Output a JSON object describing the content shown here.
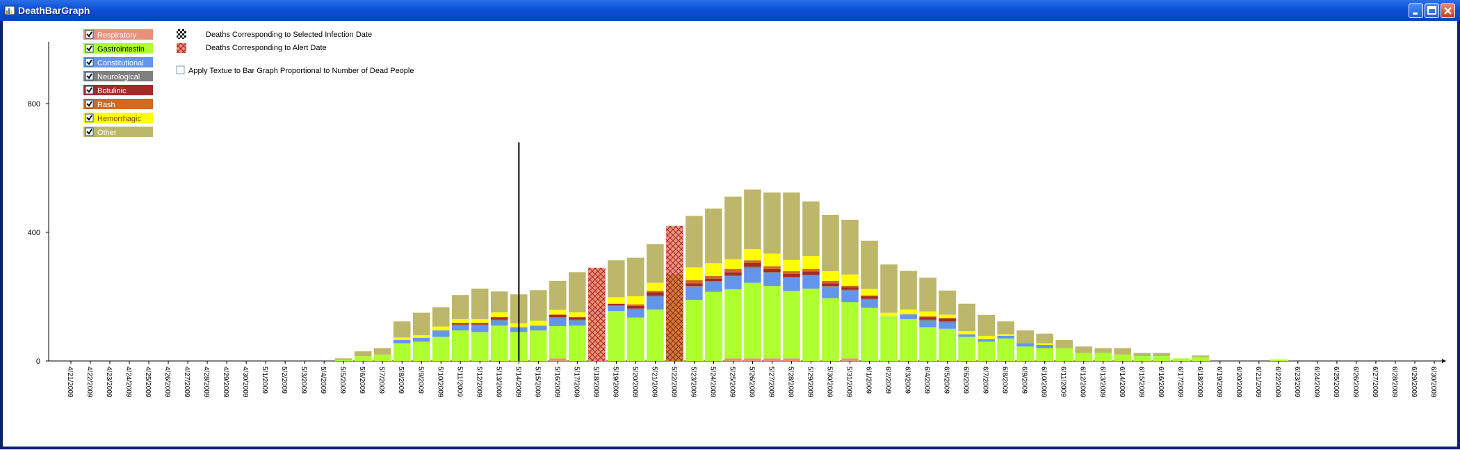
{
  "window": {
    "title": "DeathBarGraph"
  },
  "legend": {
    "items": [
      {
        "label": "Respiratory",
        "color": "#E8907A",
        "text_color": "#FFFFFF",
        "checked": true
      },
      {
        "label": "Gastrointestin",
        "color": "#ADFF2F",
        "text_color": "#000000",
        "checked": true
      },
      {
        "label": "Constitutional",
        "color": "#6495ED",
        "text_color": "#FFFFFF",
        "checked": true
      },
      {
        "label": "Neurological",
        "color": "#808080",
        "text_color": "#FFFFFF",
        "checked": true
      },
      {
        "label": "Botulinic",
        "color": "#A52A2A",
        "text_color": "#FFFFFF",
        "checked": true
      },
      {
        "label": "Rash",
        "color": "#D2691E",
        "text_color": "#FFFFFF",
        "checked": true
      },
      {
        "label": "Hemorrhagic",
        "color": "#FFFF00",
        "text_color": "#8B4513",
        "checked": true
      },
      {
        "label": "Other",
        "color": "#BDB76B",
        "text_color": "#FFFFFF",
        "checked": true
      }
    ],
    "texture_legend": [
      {
        "label": "Deaths Corresponding to Selected Infection Date",
        "pattern": "black-checker"
      },
      {
        "label": "Deaths Corresponding to Alert Date",
        "pattern": "red-checker"
      }
    ],
    "apply_texture": {
      "label": "Apply Textue to Bar Graph Proportional to Number of Dead People",
      "checked": false
    }
  },
  "chart_data": {
    "type": "bar",
    "stacked": true,
    "title": "",
    "xlabel": "",
    "ylabel": "",
    "ylim": [
      0,
      1000
    ],
    "yticks": [
      0,
      400,
      800
    ],
    "grid": false,
    "categories": [
      "4/21/2009",
      "4/22/2009",
      "4/23/2009",
      "4/24/2009",
      "4/25/2009",
      "4/26/2009",
      "4/27/2009",
      "4/28/2009",
      "4/29/2009",
      "4/30/2009",
      "5/1/2009",
      "5/2/2009",
      "5/3/2009",
      "5/4/2009",
      "5/5/2009",
      "5/6/2009",
      "5/7/2009",
      "5/8/2009",
      "5/9/2009",
      "5/10/2009",
      "5/11/2009",
      "5/12/2009",
      "5/13/2009",
      "5/14/2009",
      "5/15/2009",
      "5/16/2009",
      "5/17/2009",
      "5/18/2009",
      "5/19/2009",
      "5/20/2009",
      "5/21/2009",
      "5/22/2009",
      "5/23/2009",
      "5/24/2009",
      "5/25/2009",
      "5/26/2009",
      "5/27/2009",
      "5/28/2009",
      "5/29/2009",
      "5/30/2009",
      "5/31/2009",
      "6/1/2009",
      "6/2/2009",
      "6/3/2009",
      "6/4/2009",
      "6/5/2009",
      "6/6/2009",
      "6/7/2009",
      "6/8/2009",
      "6/9/2009",
      "6/10/2009",
      "6/11/2009",
      "6/12/2009",
      "6/13/2009",
      "6/14/2009",
      "6/15/2009",
      "6/16/2009",
      "6/17/2009",
      "6/18/2009",
      "6/19/2009",
      "6/20/2009",
      "6/21/2009",
      "6/22/2009",
      "6/23/2009",
      "6/24/2009",
      "6/25/2009",
      "6/26/2009",
      "6/27/2009",
      "6/28/2009",
      "6/29/2009",
      "6/30/2009"
    ],
    "series": [
      {
        "name": "Respiratory",
        "color": "#E8907A",
        "values": [
          0,
          0,
          0,
          0,
          0,
          0,
          0,
          0,
          0,
          0,
          0,
          0,
          0,
          0,
          0,
          0,
          0,
          0,
          0,
          0,
          0,
          0,
          0,
          0,
          0,
          8,
          0,
          8,
          0,
          0,
          0,
          0,
          0,
          0,
          8,
          8,
          8,
          8,
          0,
          0,
          8,
          0,
          0,
          0,
          0,
          0,
          0,
          0,
          0,
          0,
          0,
          0,
          0,
          0,
          0,
          0,
          0,
          0,
          0,
          0,
          0,
          0,
          0,
          0,
          0,
          0,
          0,
          0,
          0,
          0,
          0
        ]
      },
      {
        "name": "Gastrointestin",
        "color": "#ADFF2F",
        "values": [
          0,
          0,
          0,
          0,
          0,
          0,
          0,
          0,
          0,
          0,
          0,
          0,
          0,
          0,
          3,
          15,
          20,
          55,
          60,
          75,
          95,
          90,
          110,
          90,
          95,
          100,
          110,
          130,
          155,
          135,
          160,
          185,
          190,
          215,
          215,
          235,
          225,
          210,
          225,
          195,
          175,
          165,
          140,
          130,
          105,
          100,
          75,
          60,
          70,
          45,
          40,
          40,
          25,
          25,
          20,
          15,
          15,
          8,
          12,
          0,
          0,
          0,
          5,
          0,
          0,
          0,
          0,
          0,
          0,
          0,
          0
        ]
      },
      {
        "name": "Constitutional",
        "color": "#6495ED",
        "values": [
          0,
          0,
          0,
          0,
          0,
          0,
          0,
          0,
          0,
          0,
          0,
          0,
          0,
          0,
          0,
          0,
          0,
          10,
          12,
          20,
          15,
          20,
          15,
          15,
          15,
          25,
          15,
          20,
          15,
          25,
          40,
          0,
          40,
          30,
          40,
          45,
          40,
          40,
          40,
          35,
          35,
          25,
          0,
          15,
          20,
          20,
          8,
          8,
          8,
          10,
          10,
          0,
          0,
          0,
          0,
          0,
          0,
          0,
          0,
          0,
          0,
          0,
          0,
          0,
          0,
          0,
          0,
          0,
          0,
          0,
          0
        ]
      },
      {
        "name": "Neurological",
        "color": "#808080",
        "values": [
          0,
          0,
          0,
          0,
          0,
          0,
          0,
          0,
          0,
          0,
          0,
          0,
          0,
          0,
          0,
          0,
          0,
          0,
          0,
          0,
          3,
          3,
          3,
          0,
          0,
          3,
          3,
          3,
          3,
          3,
          3,
          0,
          3,
          3,
          3,
          5,
          3,
          3,
          3,
          3,
          3,
          3,
          0,
          0,
          3,
          3,
          0,
          0,
          0,
          0,
          0,
          0,
          0,
          0,
          0,
          0,
          0,
          0,
          0,
          0,
          0,
          0,
          0,
          0,
          0,
          0,
          0,
          0,
          0,
          0,
          0
        ]
      },
      {
        "name": "Botulinic",
        "color": "#A52A2A",
        "values": [
          0,
          0,
          0,
          0,
          0,
          0,
          0,
          0,
          0,
          0,
          0,
          0,
          0,
          0,
          0,
          0,
          0,
          0,
          0,
          0,
          5,
          5,
          8,
          0,
          0,
          8,
          8,
          8,
          5,
          8,
          10,
          0,
          8,
          8,
          10,
          12,
          10,
          10,
          10,
          8,
          8,
          8,
          0,
          0,
          8,
          8,
          0,
          0,
          0,
          0,
          0,
          0,
          0,
          0,
          0,
          0,
          0,
          0,
          0,
          0,
          0,
          0,
          0,
          0,
          0,
          0,
          0,
          0,
          0,
          0,
          0
        ]
      },
      {
        "name": "Rash",
        "color": "#D2691E",
        "values": [
          0,
          0,
          0,
          0,
          0,
          0,
          0,
          0,
          0,
          0,
          0,
          0,
          0,
          0,
          0,
          0,
          0,
          0,
          0,
          0,
          0,
          0,
          0,
          0,
          0,
          0,
          0,
          0,
          0,
          5,
          5,
          0,
          10,
          8,
          10,
          8,
          8,
          8,
          8,
          8,
          5,
          3,
          0,
          0,
          3,
          3,
          0,
          0,
          0,
          0,
          0,
          0,
          0,
          0,
          0,
          0,
          0,
          0,
          0,
          0,
          0,
          0,
          0,
          0,
          0,
          0,
          0,
          0,
          0,
          0,
          0
        ]
      },
      {
        "name": "Hemorrhagic",
        "color": "#FFFF00",
        "values": [
          0,
          0,
          0,
          0,
          0,
          0,
          0,
          0,
          0,
          0,
          0,
          0,
          0,
          0,
          0,
          0,
          0,
          8,
          8,
          12,
          12,
          12,
          15,
          12,
          15,
          15,
          15,
          15,
          20,
          25,
          25,
          0,
          40,
          40,
          30,
          35,
          40,
          35,
          40,
          30,
          35,
          20,
          10,
          15,
          15,
          10,
          10,
          10,
          5,
          0,
          5,
          0,
          0,
          0,
          0,
          0,
          0,
          0,
          0,
          0,
          0,
          0,
          0,
          0,
          0,
          0,
          0,
          0,
          0,
          0,
          0
        ]
      },
      {
        "name": "Other",
        "color": "#BDB76B",
        "values": [
          0,
          0,
          0,
          0,
          0,
          0,
          0,
          0,
          0,
          0,
          0,
          0,
          0,
          0,
          5,
          15,
          20,
          50,
          70,
          60,
          75,
          95,
          65,
          90,
          95,
          90,
          125,
          95,
          115,
          120,
          120,
          0,
          160,
          170,
          195,
          185,
          190,
          210,
          170,
          175,
          170,
          150,
          150,
          120,
          105,
          75,
          85,
          65,
          40,
          40,
          30,
          25,
          20,
          15,
          20,
          10,
          10,
          0,
          5,
          0,
          0,
          0,
          0,
          0,
          0,
          0,
          0,
          0,
          0,
          0,
          0
        ]
      }
    ],
    "textured_bars": [
      {
        "category": "5/18/2009",
        "pattern": "red-checker",
        "total": 290
      },
      {
        "category": "5/22/2009",
        "pattern": "red-checker",
        "total": 420
      },
      {
        "category": "5/22/2009",
        "pattern": "black-checker-overlay",
        "total": 270
      }
    ],
    "selected_date_line": {
      "category": "5/14/2009",
      "value": 680
    }
  }
}
